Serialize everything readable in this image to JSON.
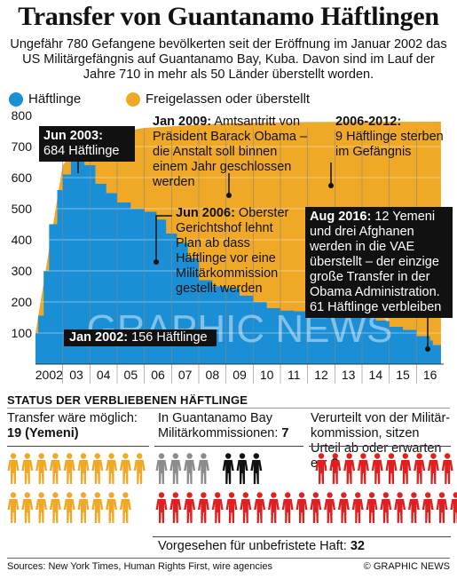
{
  "title": "Transfer von Guantanamo Häftlingen",
  "intro": "Ungefähr 780 Gefangene bevölkerten seit der Eröffnung im Januar 2002 das US Militärgefängnis auf Guantanamo Bay, Kuba. Davon sind im Lauf der Jahre 710 in mehr als 50 Länder überstellt worden.",
  "legend": {
    "detainees": "Häftlinge",
    "released": "Freigelassen oder überstellt"
  },
  "colors": {
    "detainees": "#1a8fd6",
    "released": "#f0a926",
    "grey": "#8c8c8c",
    "black": "#111111",
    "red": "#e02020"
  },
  "annotations": {
    "jun2003_head": "Jun 2003:",
    "jun2003_body": "684 Häftlinge",
    "jan2009_head": "Jan 2009:",
    "jan2009_body": " Amtsantritt von Präsident Barack Obama – die Anstalt soll binnen einem Jahr geschlossen werden",
    "y2006_2012_head": "2006-2012:",
    "y2006_2012_body": "9 Häftlinge sterben im Gefängnis",
    "jun2006_head": "Jun 2006:",
    "jun2006_body": " Oberster Gerichtshof lehnt Plan ab dass Häftlinge vor eine Militärkommission gestellt werden",
    "aug2016_head": "Aug 2016:",
    "aug2016_body": " 12 Yemeni und drei Afghanen werden in die VAE überstellt – der einzige große Transfer in der Obama Administration. 61 Häftlinge verbleiben",
    "jan2002_head": "Jan 2002:",
    "jan2002_body": " 156 Häftlinge"
  },
  "watermark": "GRAPHIC NEWS",
  "chart_data": {
    "type": "area",
    "x_ticks": [
      "2002",
      "03",
      "04",
      "05",
      "06",
      "07",
      "08",
      "09",
      "10",
      "11",
      "12",
      "13",
      "14",
      "15",
      "16"
    ],
    "ylim": [
      0,
      800
    ],
    "y_ticks": [
      100,
      200,
      300,
      400,
      500,
      600,
      700,
      800
    ],
    "grid": true,
    "series": [
      {
        "name": "Häftlinge",
        "x": [
          2002.0,
          2002.1,
          2002.3,
          2002.5,
          2002.8,
          2003.0,
          2003.3,
          2003.45,
          2003.8,
          2004.2,
          2004.6,
          2005.0,
          2005.5,
          2006.0,
          2006.45,
          2006.8,
          2007.2,
          2007.6,
          2008.0,
          2008.5,
          2009.0,
          2009.5,
          2010.0,
          2010.5,
          2011.0,
          2011.5,
          2012.0,
          2012.5,
          2013.0,
          2013.5,
          2014.0,
          2014.5,
          2015.0,
          2015.5,
          2016.0,
          2016.5,
          2016.6,
          2016.9
        ],
        "values": [
          100,
          156,
          300,
          450,
          560,
          610,
          660,
          684,
          640,
          580,
          550,
          520,
          500,
          490,
          465,
          420,
          390,
          340,
          270,
          250,
          242,
          220,
          200,
          180,
          172,
          170,
          168,
          166,
          165,
          160,
          150,
          140,
          120,
          110,
          90,
          76,
          61,
          59
        ]
      },
      {
        "name": "Freigelassen oder überstellt",
        "x": [
          2002.0,
          2003.0,
          2003.45,
          2004.0,
          2006.0,
          2009.0,
          2012.0,
          2016.9
        ],
        "values": [
          100,
          640,
          690,
          730,
          760,
          775,
          779,
          780
        ]
      }
    ]
  },
  "status": {
    "heading": "STATUS DER VERBLIEBENEN HÄFTLINGE",
    "transfer_text": "Transfer wäre möglich: ",
    "transfer_count": "19 (Yemeni)",
    "transfer_n": 19,
    "commission_text": "In Guantanamo Bay Militärkommissionen: ",
    "commission_count": "7",
    "commission_n": 7,
    "convicted_text": "Verurteilt von der Militär-kommission, sitzen Urteil ab oder erwarten es: ",
    "convicted_count": "3",
    "convicted_n": 3,
    "indefinite_text": "Vorgesehen für unbefristete Haft: ",
    "indefinite_count": "32",
    "indefinite_n": 32
  },
  "footer": {
    "sources": "Sources: New York Times, Human Rights First, wire agencies",
    "credit": "© GRAPHIC NEWS"
  }
}
